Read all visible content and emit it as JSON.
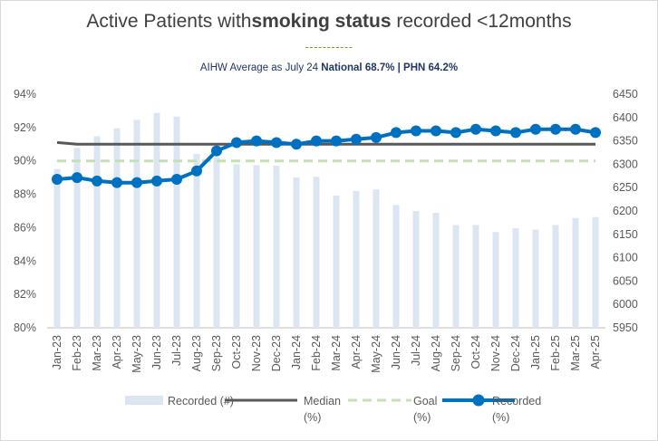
{
  "title": {
    "prefix": "Active Patients with",
    "bold": "smoking status",
    "suffix": " recorded <12months"
  },
  "title_underline": "-----------",
  "subtitle": {
    "prefix": "AIHW Average as July 24 ",
    "bold": "National 68.7% | PHN 64.2%"
  },
  "colors": {
    "bars": "#dce6f2",
    "median": "#595959",
    "goal": "#c5e0b4",
    "recorded": "#0070c0"
  },
  "chart_data": {
    "type": "bar+line",
    "categories": [
      "Jan-23",
      "Feb-23",
      "Mar-23",
      "Apr-23",
      "May-23",
      "Jun-23",
      "Jul-23",
      "Aug-23",
      "Sep-23",
      "Oct-23",
      "Nov-23",
      "Dec-23",
      "Jan-24",
      "Feb-24",
      "Mar-24",
      "Apr-24",
      "May-24",
      "Jun-24",
      "Jul-24",
      "Aug-24",
      "Sep-24",
      "Oct-24",
      "Nov-24",
      "Dec-24",
      "Jan-25",
      "Feb-25",
      "Mar-25",
      "Apr-25"
    ],
    "y_left": {
      "ticks": [
        "80%",
        "82%",
        "84%",
        "86%",
        "88%",
        "90%",
        "92%",
        "94%"
      ],
      "min": 80,
      "max": 94
    },
    "y_right": {
      "ticks": [
        "5950",
        "6000",
        "6050",
        "6100",
        "6150",
        "6200",
        "6250",
        "6300",
        "6350",
        "6400",
        "6450"
      ],
      "min": 5950,
      "max": 6450
    },
    "series": [
      {
        "name": "Recorded (#)",
        "kind": "bar",
        "axis": "right",
        "values": [
          6290,
          6335,
          6360,
          6377,
          6395,
          6410,
          6402,
          6322,
          6315,
          6300,
          6298,
          6297,
          6272,
          6273,
          6233,
          6243,
          6246,
          6213,
          6200,
          6196,
          6170,
          6170,
          6155,
          6163,
          6160,
          6170,
          6185,
          6187
        ]
      },
      {
        "name": "Median (%)",
        "kind": "line",
        "axis": "left",
        "values": [
          91.1,
          91.0,
          91.0,
          91.0,
          91.0,
          91.0,
          91.0,
          91.0,
          91.0,
          91.0,
          91.0,
          91.0,
          91.0,
          91.0,
          91.0,
          91.0,
          91.0,
          91.0,
          91.0,
          91.0,
          91.0,
          91.0,
          91.0,
          91.0,
          91.0,
          91.0,
          91.0,
          91.0
        ]
      },
      {
        "name": "Goal (%)",
        "kind": "dashed-line",
        "axis": "left",
        "values": [
          90,
          90,
          90,
          90,
          90,
          90,
          90,
          90,
          90,
          90,
          90,
          90,
          90,
          90,
          90,
          90,
          90,
          90,
          90,
          90,
          90,
          90,
          90,
          90,
          90,
          90,
          90,
          90
        ]
      },
      {
        "name": "Recorded (%)",
        "kind": "line-markers",
        "axis": "left",
        "values": [
          88.9,
          89.0,
          88.8,
          88.7,
          88.7,
          88.8,
          88.9,
          89.4,
          90.6,
          91.1,
          91.2,
          91.1,
          91.0,
          91.2,
          91.2,
          91.3,
          91.4,
          91.7,
          91.8,
          91.8,
          91.7,
          91.9,
          91.8,
          91.7,
          91.9,
          91.9,
          91.9,
          91.7
        ]
      }
    ],
    "legend": {
      "placement": "bottom",
      "items": [
        {
          "label_line1": "Recorded (#)",
          "label_line2": ""
        },
        {
          "label_line1": "Median",
          "label_line2": "(%)"
        },
        {
          "label_line1": "Goal",
          "label_line2": "(%)"
        },
        {
          "label_line1": "Recorded",
          "label_line2": "(%)"
        }
      ]
    }
  }
}
